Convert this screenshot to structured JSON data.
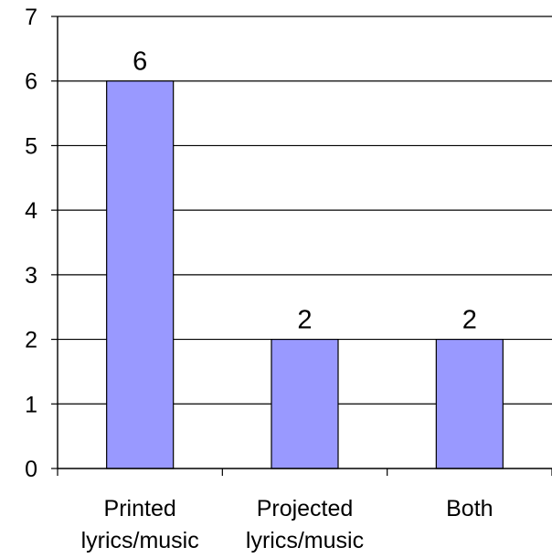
{
  "chart_data": {
    "type": "bar",
    "title": "",
    "xlabel": "",
    "ylabel": "",
    "categories": [
      [
        "Printed",
        "lyrics/music"
      ],
      [
        "Projected",
        "lyrics/music"
      ],
      [
        "Both"
      ]
    ],
    "values": [
      6,
      2,
      2
    ],
    "data_labels": [
      "6",
      "2",
      "2"
    ],
    "ylim": [
      0,
      7
    ],
    "yticks": [
      "0",
      "1",
      "2",
      "3",
      "4",
      "5",
      "6",
      "7"
    ],
    "grid": true,
    "legend": "none",
    "colors": {
      "bar_fill": "#9999ff",
      "bar_stroke": "#000000",
      "gridline": "#000000",
      "axis": "#000000",
      "background": "#ffffff"
    }
  }
}
